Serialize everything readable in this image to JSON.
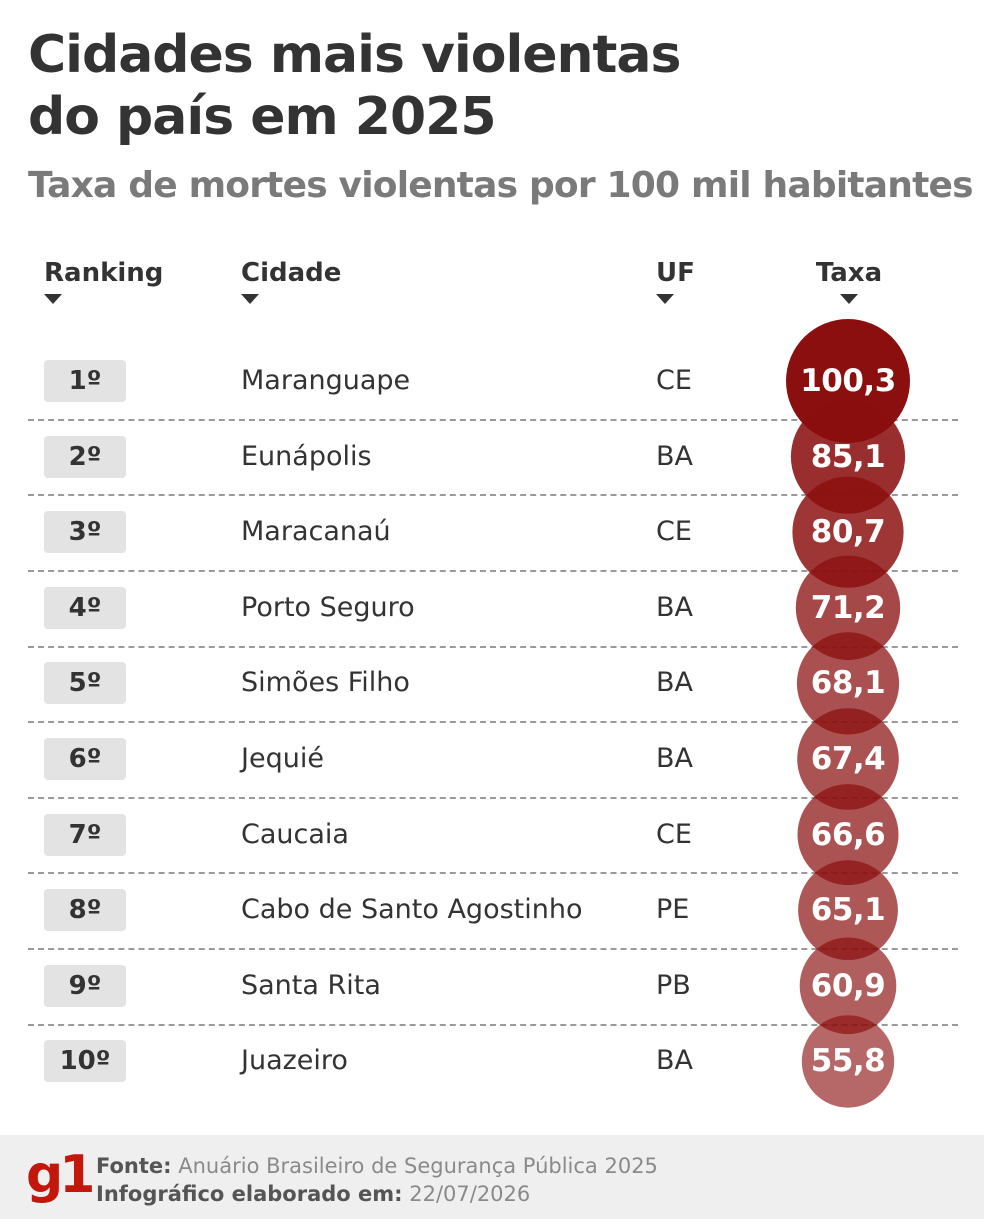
{
  "title_lines": [
    "Cidades mais violentas",
    "do país em 2025"
  ],
  "subtitle": "Taxa de mortes violentas por 100 mil habitantes",
  "headers": {
    "ranking": "Ranking",
    "cidade": "Cidade",
    "uf": "UF",
    "taxa": "Taxa"
  },
  "rows": [
    {
      "rank": "1º",
      "city": "Maranguape",
      "uf": "CE",
      "taxa": "100,3"
    },
    {
      "rank": "2º",
      "city": "Eunápolis",
      "uf": "BA",
      "taxa": "85,1"
    },
    {
      "rank": "3º",
      "city": "Maracanaú",
      "uf": "CE",
      "taxa": "80,7"
    },
    {
      "rank": "4º",
      "city": "Porto Seguro",
      "uf": "BA",
      "taxa": "71,2"
    },
    {
      "rank": "5º",
      "city": "Simões Filho",
      "uf": "BA",
      "taxa": "68,1"
    },
    {
      "rank": "6º",
      "city": "Jequié",
      "uf": "BA",
      "taxa": "67,4"
    },
    {
      "rank": "7º",
      "city": "Caucaia",
      "uf": "CE",
      "taxa": "66,6"
    },
    {
      "rank": "8º",
      "city": "Cabo de Santo Agostinho",
      "uf": "PE",
      "taxa": "65,1"
    },
    {
      "rank": "9º",
      "city": "Santa Rita",
      "uf": "PB",
      "taxa": "60,9"
    },
    {
      "rank": "10º",
      "city": "Juazeiro",
      "uf": "BA",
      "taxa": "55,8"
    }
  ],
  "chart_data": {
    "type": "table",
    "title": "Cidades mais violentas do país em 2025",
    "subtitle": "Taxa de mortes violentas por 100 mil habitantes",
    "columns": [
      "Ranking",
      "Cidade",
      "UF",
      "Taxa"
    ],
    "categories": [
      "Maranguape",
      "Eunápolis",
      "Maracanaú",
      "Porto Seguro",
      "Simões Filho",
      "Jequié",
      "Caucaia",
      "Cabo de Santo Agostinho",
      "Santa Rita",
      "Juazeiro"
    ],
    "values": [
      100.3,
      85.1,
      80.7,
      71.2,
      68.1,
      67.4,
      66.6,
      65.1,
      60.9,
      55.8
    ],
    "encoding": "bubble area and color intensity proportional to taxa"
  },
  "colors": {
    "bubble": "#8b0f0f",
    "logo": "#c4170c",
    "text": "#333333",
    "subtitle": "#7a7a7a"
  },
  "footer": {
    "logo": "g1",
    "fonte_label": "Fonte:",
    "fonte_text": "Anuário Brasileiro de Segurança Pública 2025",
    "elaborado_label": "Infográfico elaborado em:",
    "elaborado_text": "22/07/2026"
  }
}
